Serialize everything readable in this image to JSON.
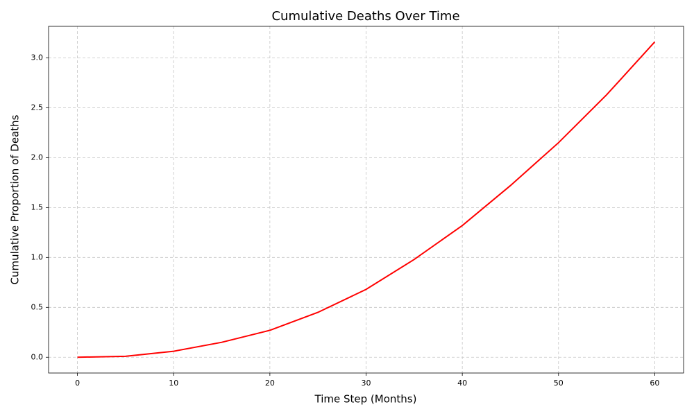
{
  "chart_data": {
    "type": "line",
    "title": "Cumulative Deaths Over Time",
    "x_label": "Time Step (Months)",
    "y_label": "Cumulative Proportion of Deaths",
    "x": [
      0,
      5,
      10,
      15,
      20,
      25,
      30,
      35,
      40,
      45,
      50,
      55,
      60
    ],
    "series": [
      {
        "name": "Cumulative Deaths",
        "color": "#ff0000",
        "values": [
          0,
          0.01,
          0.06,
          0.15,
          0.27,
          0.45,
          0.68,
          0.98,
          1.32,
          1.72,
          2.15,
          2.63,
          3.16
        ]
      }
    ],
    "xlim": [
      -3,
      63
    ],
    "xticks": [
      0,
      10,
      20,
      30,
      40,
      50,
      60
    ],
    "ylim": [
      -0.158,
      3.316
    ],
    "yticks": [
      {
        "value": 0,
        "label": "0.0"
      },
      0.5,
      {
        "value": 1,
        "label": "1.0"
      },
      1.5,
      {
        "value": 2,
        "label": "2.0"
      },
      2.5,
      {
        "value": 3,
        "label": "3.0"
      }
    ],
    "grid": true
  }
}
